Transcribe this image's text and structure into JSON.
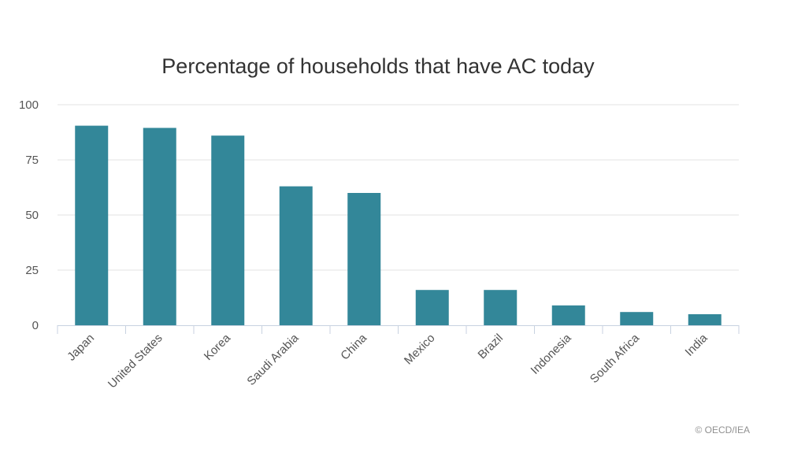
{
  "chart_data": {
    "type": "bar",
    "title": "Percentage of households that have AC today",
    "xlabel": "",
    "ylabel": "",
    "categories": [
      "Japan",
      "United States",
      "Korea",
      "Saudi Arabia",
      "China",
      "Mexico",
      "Brazil",
      "Indonesia",
      "South Africa",
      "India"
    ],
    "values": [
      90.5,
      89.5,
      86,
      63,
      60,
      16,
      16,
      9,
      6,
      5
    ],
    "ylim": [
      0,
      100
    ],
    "yticks": [
      "0",
      "25",
      "50",
      "75",
      "100"
    ],
    "grid": true,
    "legend": "none",
    "bar_color": "#338799"
  },
  "credit": "© OECD/IEA"
}
